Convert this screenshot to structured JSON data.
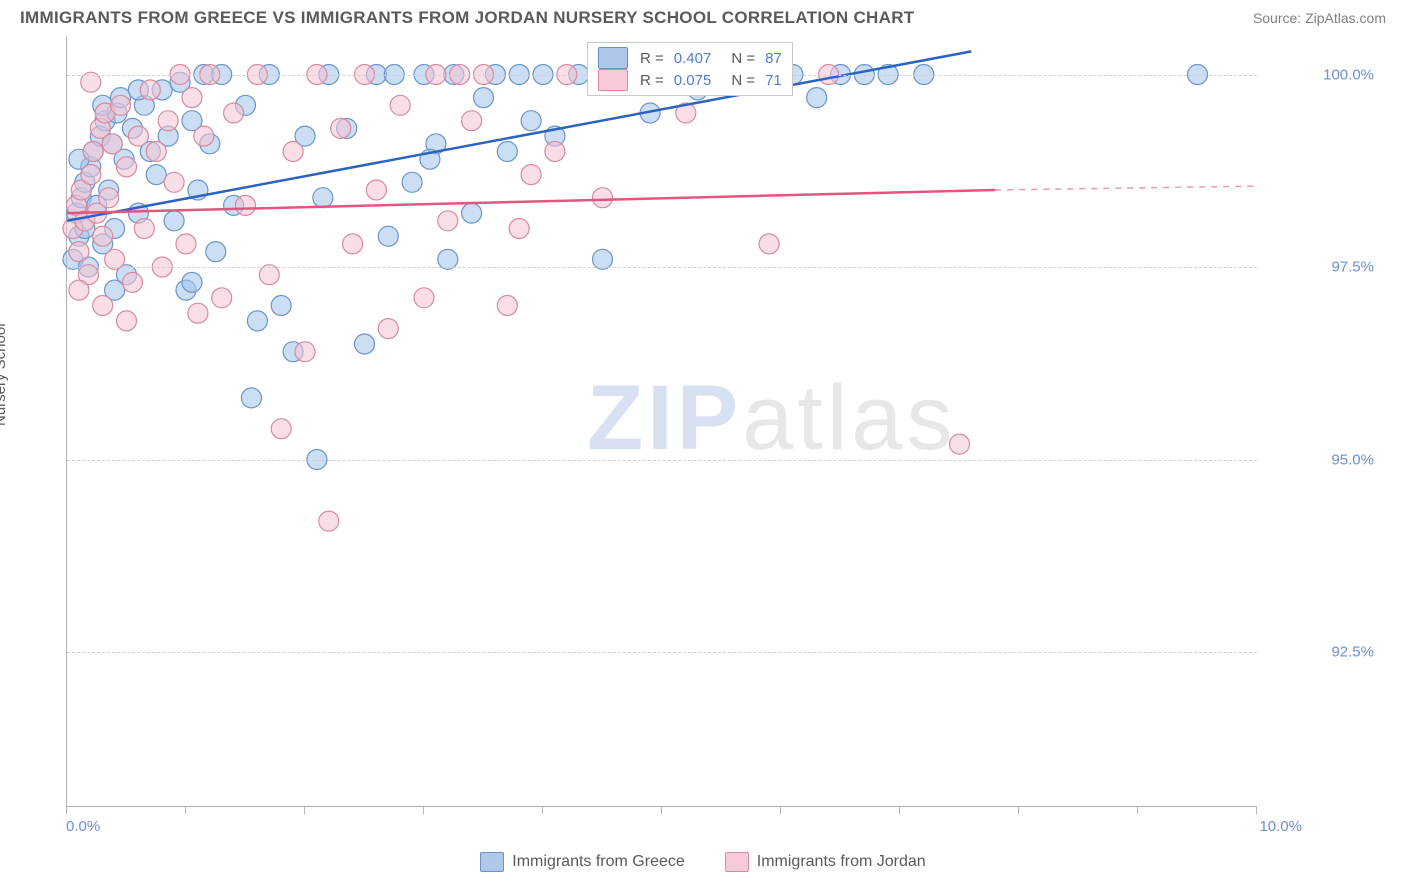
{
  "header": {
    "title": "IMMIGRANTS FROM GREECE VS IMMIGRANTS FROM JORDAN NURSERY SCHOOL CORRELATION CHART",
    "source_label": "Source:",
    "source_name": "ZipAtlas.com"
  },
  "chart": {
    "type": "scatter",
    "ylabel": "Nursery School",
    "x_min": 0.0,
    "x_max": 10.0,
    "y_min": 90.5,
    "y_max": 100.5,
    "y_ticks": [
      92.5,
      95.0,
      97.5,
      100.0
    ],
    "y_tick_labels": [
      "92.5%",
      "95.0%",
      "97.5%",
      "100.0%"
    ],
    "x_ticks": [
      0,
      1,
      2,
      3,
      4,
      5,
      6,
      7,
      8,
      9,
      10
    ],
    "x_corner_labels": [
      "0.0%",
      "10.0%"
    ],
    "background_color": "#ffffff",
    "grid_color": "#d0d0d0",
    "axis_color": "#b0b0b0",
    "marker_radius": 10,
    "marker_stroke_width": 1.2,
    "line_width": 2.5,
    "series": [
      {
        "name": "Immigrants from Greece",
        "fill": "rgba(160,195,235,0.55)",
        "stroke": "#6a95c8",
        "line_color": "#2c63c0",
        "legend_swatch_fill": "#aec8ea",
        "legend_swatch_stroke": "#6a90c6",
        "r_value": "0.407",
        "n_value": "87",
        "regression": {
          "x1": 0.0,
          "y1": 98.1,
          "x2": 7.6,
          "y2": 100.3,
          "dashed_extension": false
        },
        "points": [
          [
            0.05,
            97.6
          ],
          [
            0.08,
            98.2
          ],
          [
            0.1,
            97.9
          ],
          [
            0.12,
            98.4
          ],
          [
            0.15,
            98.0
          ],
          [
            0.15,
            98.6
          ],
          [
            0.18,
            97.5
          ],
          [
            0.2,
            98.8
          ],
          [
            0.22,
            99.0
          ],
          [
            0.25,
            98.3
          ],
          [
            0.28,
            99.2
          ],
          [
            0.3,
            97.8
          ],
          [
            0.32,
            99.4
          ],
          [
            0.35,
            98.5
          ],
          [
            0.38,
            99.1
          ],
          [
            0.4,
            98.0
          ],
          [
            0.42,
            99.5
          ],
          [
            0.45,
            99.7
          ],
          [
            0.48,
            98.9
          ],
          [
            0.5,
            97.4
          ],
          [
            0.55,
            99.3
          ],
          [
            0.6,
            98.2
          ],
          [
            0.65,
            99.6
          ],
          [
            0.7,
            99.0
          ],
          [
            0.75,
            98.7
          ],
          [
            0.8,
            99.8
          ],
          [
            0.85,
            99.2
          ],
          [
            0.9,
            98.1
          ],
          [
            0.95,
            99.9
          ],
          [
            1.0,
            97.2
          ],
          [
            1.05,
            99.4
          ],
          [
            1.1,
            98.5
          ],
          [
            1.15,
            100.0
          ],
          [
            1.2,
            99.1
          ],
          [
            1.25,
            97.7
          ],
          [
            1.3,
            100.0
          ],
          [
            1.4,
            98.3
          ],
          [
            1.5,
            99.6
          ],
          [
            1.55,
            95.8
          ],
          [
            1.6,
            96.8
          ],
          [
            1.7,
            100.0
          ],
          [
            1.8,
            97.0
          ],
          [
            1.9,
            96.4
          ],
          [
            2.0,
            99.2
          ],
          [
            2.1,
            95.0
          ],
          [
            2.2,
            100.0
          ],
          [
            2.35,
            99.3
          ],
          [
            2.5,
            96.5
          ],
          [
            2.6,
            100.0
          ],
          [
            2.7,
            97.9
          ],
          [
            2.75,
            100.0
          ],
          [
            2.9,
            98.6
          ],
          [
            3.0,
            100.0
          ],
          [
            3.1,
            99.1
          ],
          [
            3.2,
            97.6
          ],
          [
            3.25,
            100.0
          ],
          [
            3.4,
            98.2
          ],
          [
            3.5,
            99.7
          ],
          [
            3.6,
            100.0
          ],
          [
            3.7,
            99.0
          ],
          [
            3.8,
            100.0
          ],
          [
            3.9,
            99.4
          ],
          [
            4.0,
            100.0
          ],
          [
            4.1,
            99.2
          ],
          [
            4.3,
            100.0
          ],
          [
            4.5,
            97.6
          ],
          [
            4.7,
            100.0
          ],
          [
            4.9,
            99.5
          ],
          [
            5.1,
            100.0
          ],
          [
            5.3,
            99.8
          ],
          [
            5.5,
            100.0
          ],
          [
            5.7,
            100.0
          ],
          [
            5.9,
            100.0
          ],
          [
            6.1,
            100.0
          ],
          [
            6.3,
            99.7
          ],
          [
            6.5,
            100.0
          ],
          [
            6.7,
            100.0
          ],
          [
            6.9,
            100.0
          ],
          [
            7.2,
            100.0
          ],
          [
            9.5,
            100.0
          ],
          [
            1.05,
            97.3
          ],
          [
            0.6,
            99.8
          ],
          [
            0.4,
            97.2
          ],
          [
            0.1,
            98.9
          ],
          [
            0.3,
            99.6
          ],
          [
            2.15,
            98.4
          ],
          [
            3.05,
            98.9
          ]
        ]
      },
      {
        "name": "Immigrants from Jordan",
        "fill": "rgba(245,195,210,0.55)",
        "stroke": "#d68aa0",
        "line_color": "#e0567e",
        "legend_swatch_fill": "#f6cad6",
        "legend_swatch_stroke": "#d88ba2",
        "r_value": "0.075",
        "n_value": "71",
        "regression": {
          "x1": 0.0,
          "y1": 98.2,
          "x2": 7.8,
          "y2": 98.5,
          "dashed_extension": true,
          "dash_x2": 10.0,
          "dash_y2": 98.55
        },
        "points": [
          [
            0.05,
            98.0
          ],
          [
            0.08,
            98.3
          ],
          [
            0.1,
            97.7
          ],
          [
            0.12,
            98.5
          ],
          [
            0.15,
            98.1
          ],
          [
            0.18,
            97.4
          ],
          [
            0.2,
            98.7
          ],
          [
            0.22,
            99.0
          ],
          [
            0.25,
            98.2
          ],
          [
            0.28,
            99.3
          ],
          [
            0.3,
            97.9
          ],
          [
            0.32,
            99.5
          ],
          [
            0.35,
            98.4
          ],
          [
            0.38,
            99.1
          ],
          [
            0.4,
            97.6
          ],
          [
            0.45,
            99.6
          ],
          [
            0.5,
            98.8
          ],
          [
            0.55,
            97.3
          ],
          [
            0.6,
            99.2
          ],
          [
            0.65,
            98.0
          ],
          [
            0.7,
            99.8
          ],
          [
            0.75,
            99.0
          ],
          [
            0.8,
            97.5
          ],
          [
            0.85,
            99.4
          ],
          [
            0.9,
            98.6
          ],
          [
            0.95,
            100.0
          ],
          [
            1.0,
            97.8
          ],
          [
            1.05,
            99.7
          ],
          [
            1.1,
            96.9
          ],
          [
            1.15,
            99.2
          ],
          [
            1.2,
            100.0
          ],
          [
            1.3,
            97.1
          ],
          [
            1.4,
            99.5
          ],
          [
            1.5,
            98.3
          ],
          [
            1.6,
            100.0
          ],
          [
            1.7,
            97.4
          ],
          [
            1.8,
            95.4
          ],
          [
            1.9,
            99.0
          ],
          [
            2.0,
            96.4
          ],
          [
            2.1,
            100.0
          ],
          [
            2.2,
            94.2
          ],
          [
            2.3,
            99.3
          ],
          [
            2.4,
            97.8
          ],
          [
            2.5,
            100.0
          ],
          [
            2.6,
            98.5
          ],
          [
            2.7,
            96.7
          ],
          [
            2.8,
            99.6
          ],
          [
            3.0,
            97.1
          ],
          [
            3.1,
            100.0
          ],
          [
            3.2,
            98.1
          ],
          [
            3.3,
            100.0
          ],
          [
            3.4,
            99.4
          ],
          [
            3.5,
            100.0
          ],
          [
            3.7,
            97.0
          ],
          [
            3.8,
            98.0
          ],
          [
            3.9,
            98.7
          ],
          [
            4.1,
            99.0
          ],
          [
            4.2,
            100.0
          ],
          [
            4.5,
            98.4
          ],
          [
            4.6,
            100.0
          ],
          [
            5.0,
            100.0
          ],
          [
            5.2,
            99.5
          ],
          [
            5.5,
            100.0
          ],
          [
            5.9,
            97.8
          ],
          [
            6.0,
            100.0
          ],
          [
            6.4,
            100.0
          ],
          [
            7.5,
            95.2
          ],
          [
            0.1,
            97.2
          ],
          [
            0.3,
            97.0
          ],
          [
            0.5,
            96.8
          ],
          [
            0.2,
            99.9
          ]
        ]
      }
    ]
  },
  "stats_legend": {
    "r_label": "R =",
    "n_label": "N ="
  },
  "bottom_legend": {
    "items": [
      "Immigrants from Greece",
      "Immigrants from Jordan"
    ]
  },
  "watermark": {
    "part1": "ZIP",
    "part2": "atlas"
  }
}
